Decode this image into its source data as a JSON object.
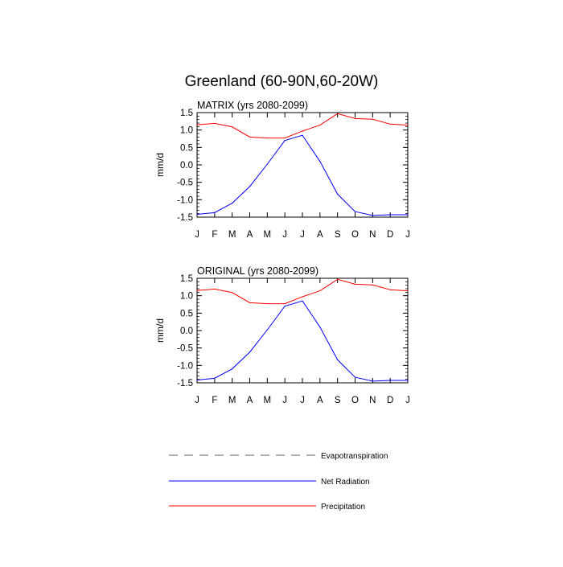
{
  "figure": {
    "title": "Greenland (60-90N,60-20W)"
  },
  "legend": [
    {
      "name": "Evapotranspiration",
      "color": "#808080",
      "style": "dashed"
    },
    {
      "name": "Net Radiation",
      "color": "#0000ff",
      "style": "solid"
    },
    {
      "name": "Precipitation",
      "color": "#ff0000",
      "style": "solid"
    }
  ],
  "chart_data": [
    {
      "type": "line",
      "title": "MATRIX (yrs 2080-2099)",
      "xlabel": "",
      "ylabel": "mm/d",
      "categories": [
        "J",
        "F",
        "M",
        "A",
        "M",
        "J",
        "J",
        "A",
        "S",
        "O",
        "N",
        "D",
        "J"
      ],
      "ylim": [
        -1.5,
        1.5
      ],
      "yticks": [
        1.5,
        1.0,
        0.5,
        0.0,
        -0.5,
        -1.0,
        -1.5
      ],
      "ytick_labels": [
        "1.5",
        "1.0",
        "0.5",
        "0.0",
        "-0.5",
        "-1.0",
        "-1.5"
      ],
      "grid": false,
      "series": [
        {
          "name": "Net Radiation",
          "color": "#0000ff",
          "values": [
            -1.42,
            -1.37,
            -1.1,
            -0.62,
            0.02,
            0.7,
            0.85,
            0.1,
            -0.84,
            -1.34,
            -1.45,
            -1.43,
            -1.43
          ]
        },
        {
          "name": "Precipitation",
          "color": "#ff0000",
          "values": [
            1.15,
            1.19,
            1.09,
            0.8,
            0.77,
            0.77,
            0.97,
            1.14,
            1.47,
            1.33,
            1.31,
            1.17,
            1.14
          ]
        }
      ]
    },
    {
      "type": "line",
      "title": "ORIGINAL (yrs 2080-2099)",
      "xlabel": "",
      "ylabel": "mm/d",
      "categories": [
        "J",
        "F",
        "M",
        "A",
        "M",
        "J",
        "J",
        "A",
        "S",
        "O",
        "N",
        "D",
        "J"
      ],
      "ylim": [
        -1.5,
        1.5
      ],
      "yticks": [
        1.5,
        1.0,
        0.5,
        0.0,
        -0.5,
        -1.0,
        -1.5
      ],
      "ytick_labels": [
        "1.5",
        "1.0",
        "0.5",
        "0.0",
        "-0.5",
        "-1.0",
        "-1.5"
      ],
      "grid": false,
      "series": [
        {
          "name": "Net Radiation",
          "color": "#0000ff",
          "values": [
            -1.42,
            -1.37,
            -1.1,
            -0.62,
            0.02,
            0.7,
            0.85,
            0.1,
            -0.84,
            -1.34,
            -1.45,
            -1.43,
            -1.43
          ]
        },
        {
          "name": "Precipitation",
          "color": "#ff0000",
          "values": [
            1.15,
            1.19,
            1.09,
            0.8,
            0.77,
            0.77,
            0.97,
            1.14,
            1.47,
            1.33,
            1.31,
            1.17,
            1.14
          ]
        }
      ]
    }
  ]
}
